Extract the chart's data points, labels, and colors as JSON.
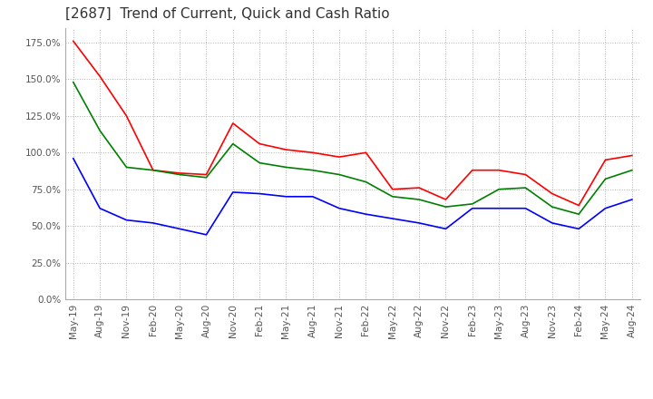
{
  "title": "[2687]  Trend of Current, Quick and Cash Ratio",
  "x_labels": [
    "May-19",
    "Aug-19",
    "Nov-19",
    "Feb-20",
    "May-20",
    "Aug-20",
    "Nov-20",
    "Feb-21",
    "May-21",
    "Aug-21",
    "Nov-21",
    "Feb-22",
    "May-22",
    "Aug-22",
    "Nov-22",
    "Feb-23",
    "May-23",
    "Aug-23",
    "Nov-23",
    "Feb-24",
    "May-24",
    "Aug-24"
  ],
  "current_ratio": [
    176,
    152,
    125,
    88,
    86,
    85,
    120,
    106,
    102,
    100,
    97,
    100,
    75,
    76,
    68,
    88,
    88,
    85,
    72,
    64,
    95,
    98
  ],
  "quick_ratio": [
    148,
    115,
    90,
    88,
    85,
    83,
    106,
    93,
    90,
    88,
    85,
    80,
    70,
    68,
    63,
    65,
    75,
    76,
    63,
    58,
    82,
    88
  ],
  "cash_ratio": [
    96,
    62,
    54,
    52,
    48,
    44,
    73,
    72,
    70,
    70,
    62,
    58,
    55,
    52,
    48,
    62,
    62,
    62,
    52,
    48,
    62,
    68
  ],
  "ylim": [
    0,
    185
  ],
  "yticks": [
    0,
    25,
    50,
    75,
    100,
    125,
    150,
    175
  ],
  "colors": {
    "current": "#ff0000",
    "quick": "#008000",
    "cash": "#0000ff"
  },
  "background_color": "#ffffff",
  "plot_bg_color": "#ffffff",
  "grid_color": "#b0b0b0",
  "title_fontsize": 11,
  "axis_fontsize": 7.5,
  "legend_fontsize": 9
}
